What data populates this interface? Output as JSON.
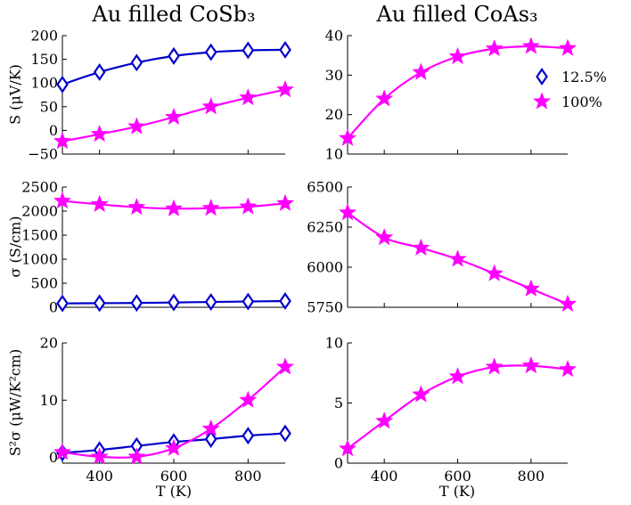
{
  "figure": {
    "title_left": "Au filled CoSb₃",
    "title_right": "Au filled CoAs₃",
    "xlabel": "T (K)"
  },
  "legend": {
    "entries": [
      {
        "label": "12.5%",
        "marker": "diamond",
        "color": "#0000cc"
      },
      {
        "label": "100%",
        "marker": "star",
        "color": "#ff00ff"
      }
    ]
  },
  "chart_data": [
    {
      "id": "S-CoSb3",
      "type": "line",
      "ylabel": "S (μV/K)",
      "xlim": [
        300,
        900
      ],
      "ylim": [
        -50,
        200
      ],
      "xticks": [
        400,
        600,
        800
      ],
      "yticks": [
        -50,
        0,
        50,
        100,
        150,
        200
      ],
      "ytick_labels": [
        "−50",
        "0",
        "50",
        "100",
        "150",
        "200"
      ],
      "x": [
        300,
        400,
        500,
        600,
        700,
        800,
        900
      ],
      "series": [
        {
          "name": "12.5%",
          "color": "#0000cc",
          "marker": "diamond",
          "values": [
            97,
            123,
            143,
            157,
            165,
            169,
            170
          ]
        },
        {
          "name": "100%",
          "color": "#ff00ff",
          "marker": "star",
          "values": [
            -23,
            -8,
            8,
            28,
            50,
            69,
            86
          ]
        }
      ]
    },
    {
      "id": "S-CoAs3",
      "type": "line",
      "ylabel": "",
      "xlim": [
        300,
        900
      ],
      "ylim": [
        10,
        40
      ],
      "xticks": [
        400,
        600,
        800
      ],
      "yticks": [
        10,
        20,
        30,
        40
      ],
      "ytick_labels": [
        "10",
        "20",
        "30",
        "40"
      ],
      "x": [
        300,
        400,
        500,
        600,
        700,
        800,
        900
      ],
      "series": [
        {
          "name": "100%",
          "color": "#ff00ff",
          "marker": "star",
          "values": [
            14,
            24,
            30.7,
            34.7,
            36.7,
            37.3,
            36.8
          ]
        }
      ]
    },
    {
      "id": "sigma-CoSb3",
      "type": "line",
      "ylabel": "σ (S/cm)",
      "xlim": [
        300,
        900
      ],
      "ylim": [
        0,
        2500
      ],
      "xticks": [
        400,
        600,
        800
      ],
      "yticks": [
        0,
        500,
        1000,
        1500,
        2000,
        2500
      ],
      "ytick_labels": [
        "0",
        "500",
        "1000",
        "1500",
        "2000",
        "2500"
      ],
      "x": [
        300,
        400,
        500,
        600,
        700,
        800,
        900
      ],
      "series": [
        {
          "name": "12.5%",
          "color": "#0000cc",
          "marker": "diamond",
          "values": [
            80,
            85,
            90,
            100,
            110,
            120,
            130
          ]
        },
        {
          "name": "100%",
          "color": "#ff00ff",
          "marker": "star",
          "values": [
            2210,
            2140,
            2080,
            2050,
            2060,
            2090,
            2160
          ]
        }
      ]
    },
    {
      "id": "sigma-CoAs3",
      "type": "line",
      "ylabel": "",
      "xlim": [
        300,
        900
      ],
      "ylim": [
        5750,
        6500
      ],
      "xticks": [
        400,
        600,
        800
      ],
      "yticks": [
        5750,
        6000,
        6250,
        6500
      ],
      "ytick_labels": [
        "5750",
        "6000",
        "6250",
        "6500"
      ],
      "x": [
        300,
        400,
        500,
        600,
        700,
        800,
        900
      ],
      "series": [
        {
          "name": "100%",
          "color": "#ff00ff",
          "marker": "star",
          "values": [
            6340,
            6185,
            6120,
            6050,
            5960,
            5865,
            5770
          ]
        }
      ]
    },
    {
      "id": "pf-CoSb3",
      "type": "line",
      "ylabel": "S²σ (μW/K²cm)",
      "xlim": [
        300,
        900
      ],
      "ylim": [
        -1,
        20
      ],
      "xticks": [
        400,
        600,
        800
      ],
      "yticks": [
        0,
        10,
        20
      ],
      "ytick_labels": [
        "0",
        "10",
        "20"
      ],
      "x": [
        300,
        400,
        500,
        600,
        700,
        800,
        900
      ],
      "series": [
        {
          "name": "12.5%",
          "color": "#0000cc",
          "marker": "diamond",
          "values": [
            0.8,
            1.3,
            2.0,
            2.7,
            3.2,
            3.8,
            4.2
          ]
        },
        {
          "name": "100%",
          "color": "#ff00ff",
          "marker": "star",
          "values": [
            0.9,
            0.1,
            0.1,
            1.6,
            5.0,
            10.0,
            15.8
          ]
        }
      ]
    },
    {
      "id": "pf-CoAs3",
      "type": "line",
      "ylabel": "",
      "xlim": [
        300,
        900
      ],
      "ylim": [
        0,
        10
      ],
      "xticks": [
        400,
        600,
        800
      ],
      "yticks": [
        0,
        5,
        10
      ],
      "ytick_labels": [
        "0",
        "5",
        "10"
      ],
      "x": [
        300,
        400,
        500,
        600,
        700,
        800,
        900
      ],
      "series": [
        {
          "name": "100%",
          "color": "#ff00ff",
          "marker": "star",
          "values": [
            1.2,
            3.5,
            5.7,
            7.2,
            8.0,
            8.1,
            7.8
          ]
        }
      ]
    }
  ]
}
